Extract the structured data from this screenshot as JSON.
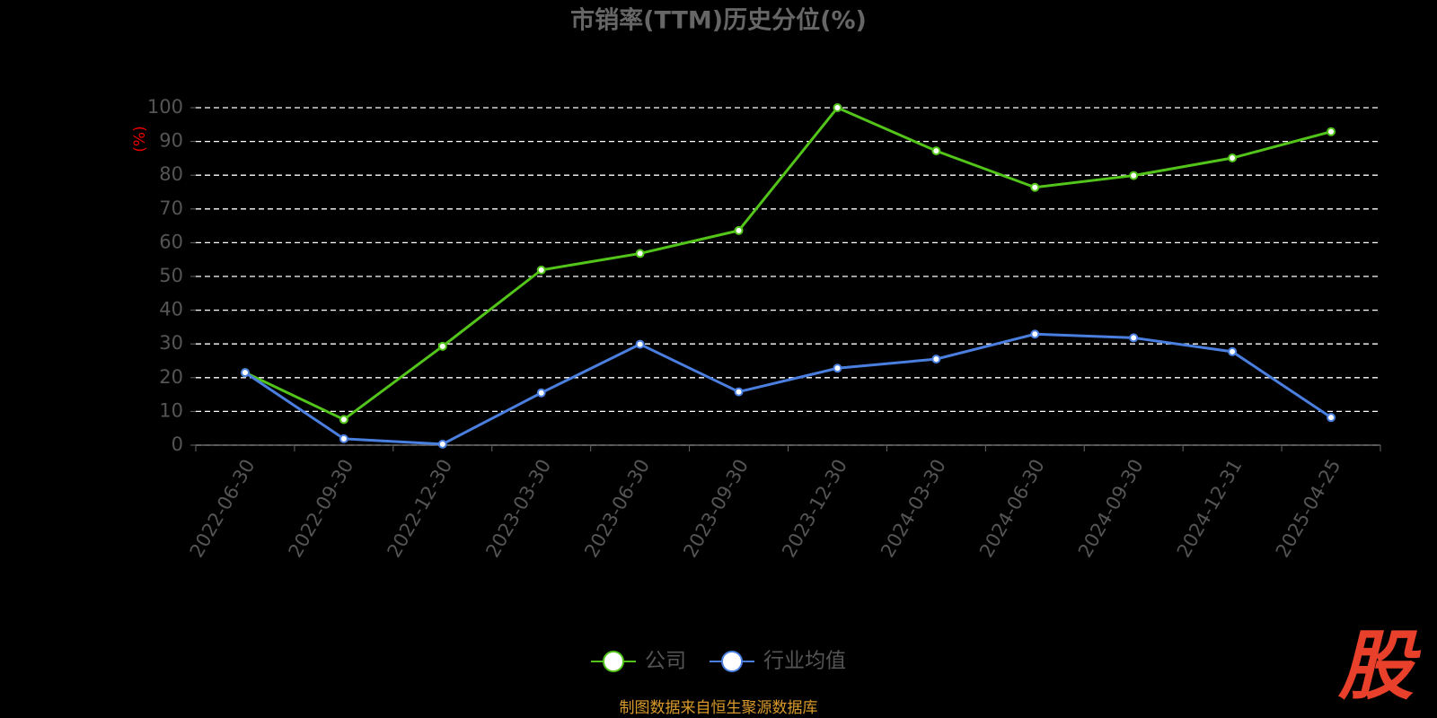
{
  "chart_data": {
    "type": "line",
    "title": "市销率(TTM)历史分位(%)",
    "y_label": "(%)",
    "categories": [
      "2022-06-30",
      "2022-09-30",
      "2022-12-30",
      "2023-03-30",
      "2023-06-30",
      "2023-09-30",
      "2023-12-30",
      "2024-03-30",
      "2024-06-30",
      "2024-09-30",
      "2024-12-31",
      "2025-04-25"
    ],
    "series": [
      {
        "name": "公司",
        "color": "#52c41a",
        "values": [
          21.5,
          7.6,
          29.3,
          51.9,
          56.8,
          63.6,
          100,
          87.2,
          76.4,
          79.9,
          85.1,
          92.9
        ]
      },
      {
        "name": "行业均值",
        "color": "#4a7fe0",
        "values": [
          21.5,
          1.9,
          0.3,
          15.5,
          29.9,
          15.8,
          22.8,
          25.5,
          32.9,
          31.8,
          27.7,
          8.2
        ]
      }
    ],
    "ylim": [
      0,
      100
    ],
    "yticks": [
      0,
      10,
      20,
      30,
      40,
      50,
      60,
      70,
      80,
      90,
      100
    ],
    "grid": true,
    "source": "制图数据来自恒生聚源数据库",
    "logo": "股"
  }
}
